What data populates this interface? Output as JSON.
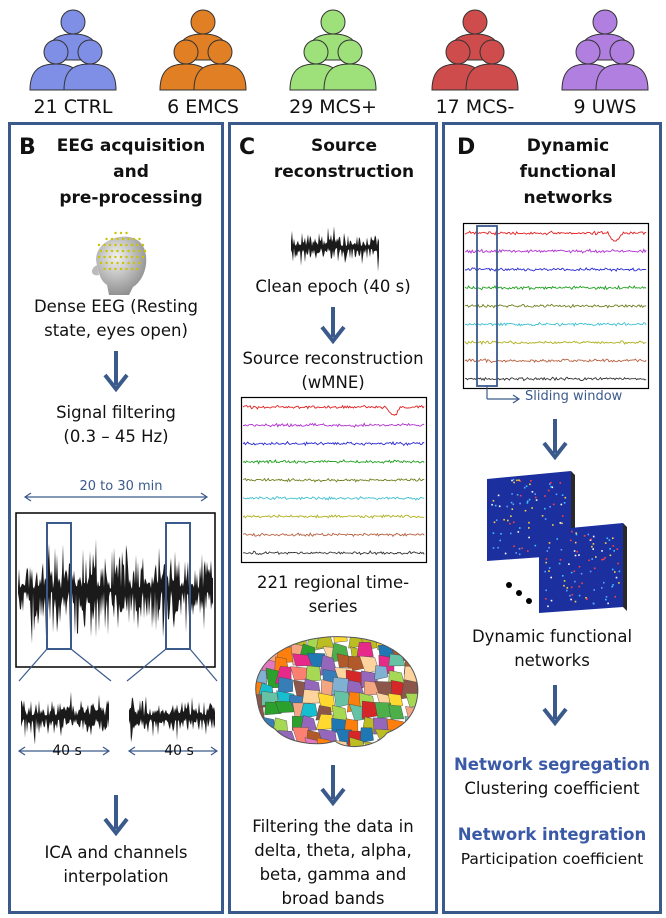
{
  "groups": [
    {
      "label": "21 CTRL",
      "color": "#7f8fe6"
    },
    {
      "label": "6 EMCS",
      "color": "#e07f24"
    },
    {
      "label": "29 MCS+",
      "color": "#9ee07a"
    },
    {
      "label": "17 MCS-",
      "color": "#cf4c4c"
    },
    {
      "label": "9 UWS",
      "color": "#b07fe0"
    }
  ],
  "panel_b": {
    "letter": "B",
    "title_l1": "EEG acquisition",
    "title_l2": "and",
    "title_l3": "pre-processing",
    "dense_l1": "Dense EEG (Resting",
    "dense_l2": "state, eyes open)",
    "filter_l1": "Signal filtering",
    "filter_l2": "(0.3 – 45 Hz)",
    "duration": "20 to 30 min",
    "epoch_left": "40 s",
    "epoch_right": "40 s",
    "ica_l1": "ICA and channels",
    "ica_l2": "interpolation"
  },
  "panel_c": {
    "letter": "C",
    "title_l1": "Source",
    "title_l2": "reconstruction",
    "clean": "Clean epoch (40 s)",
    "src_l1": "Source reconstruction",
    "src_l2": "(wMNE)",
    "reg_l1": "221 regional time-",
    "reg_l2": "series",
    "filt_l1": "Filtering the data in",
    "filt_l2": "delta, theta, alpha,",
    "filt_l3": "beta, gamma and",
    "filt_l4": "broad bands"
  },
  "panel_d": {
    "letter": "D",
    "title_l1": "Dynamic",
    "title_l2": "functional networks",
    "sliding": "Sliding window",
    "dfn_l1": "Dynamic functional",
    "dfn_l2": "networks",
    "seg_title": "Network segregation",
    "seg_sub": "Clustering coefficient",
    "int_title": "Network integration",
    "int_sub": "Participation coefficient"
  },
  "trace_colors": [
    "#e02020",
    "#b030d0",
    "#2a2ad0",
    "#20a020",
    "#708020",
    "#40c0d0",
    "#b0b020",
    "#b86040",
    "#333333"
  ],
  "accent": "#3b5a8c"
}
